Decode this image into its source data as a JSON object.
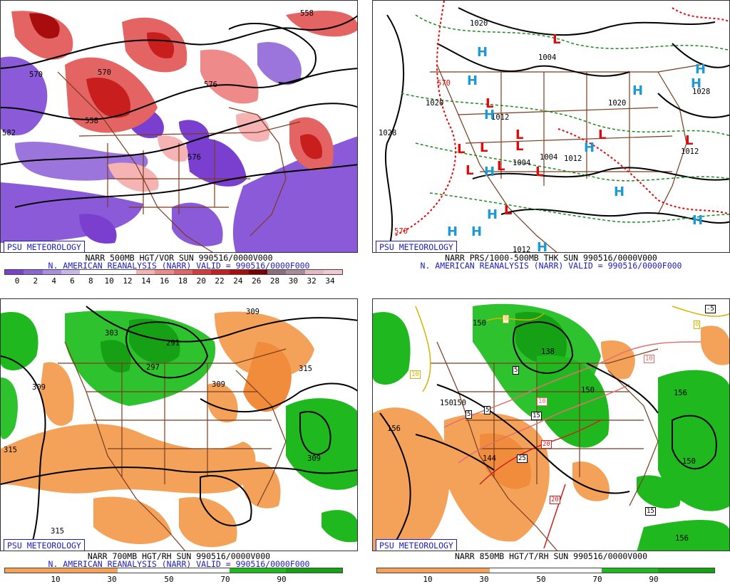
{
  "badge": "PSU METEOROLOGY",
  "panels": {
    "p1": {
      "title": "NARR 500MB HGT/VOR SUN 990516/0000V000",
      "subtitle": "N. AMERICAN REANALYSIS (NARR) VALID = 990516/0000F000",
      "colorbar_labels": [
        "0",
        "2",
        "4",
        "6",
        "8",
        "10",
        "12",
        "14",
        "16",
        "18",
        "20",
        "22",
        "24",
        "26",
        "28",
        "30",
        "32",
        "34"
      ],
      "colorbar_colors": [
        "#7b3fd0",
        "#8f63d8",
        "#aa8ee0",
        "#c9b6ea",
        "#ffffff",
        "#ffffff",
        "#ffffff",
        "#f6b3b3",
        "#ee8a8a",
        "#e46363",
        "#d63a3a",
        "#c81e1e",
        "#a80c0c",
        "#7a0000",
        "#8a6f7f",
        "#a88a9a",
        "#e7b7c4",
        "#f5c6d0"
      ],
      "contour_labels": [
        "570",
        "558",
        "570",
        "582",
        "576",
        "558",
        "576"
      ]
    },
    "p2": {
      "title": "NARR PRS/1000-500MB THK SUN 990516/0000V000",
      "subtitle": "N. AMERICAN REANALYSIS (NARR) VALID = 990516/0000F000",
      "contour_labels": [
        "1020",
        "1004",
        "1028",
        "1020",
        "1020",
        "1012",
        "1028",
        "1004",
        "1012",
        "1012",
        "570",
        "570",
        "1012",
        "1004"
      ],
      "highs": 14,
      "lows": 12
    },
    "p3": {
      "title": "NARR 700MB HGT/RH SUN 990516/0000V000",
      "subtitle": "N. AMERICAN REANALYSIS (NARR) VALID = 990516/0000F000",
      "colorbar_labels": [
        "10",
        "30",
        "50",
        "70",
        "90"
      ],
      "contour_labels": [
        "309",
        "303",
        "291",
        "297",
        "309",
        "315",
        "309",
        "315",
        "309",
        "315"
      ]
    },
    "p4": {
      "title": "NARR 850MB HGT/T/RH SUN 990516/0000V000",
      "colorbar_labels": [
        "10",
        "30",
        "50",
        "70",
        "90"
      ],
      "contour_labels": [
        "150",
        "156",
        "150",
        "138",
        "150",
        "156",
        "150",
        "144",
        "156",
        "150"
      ],
      "temp_labels": [
        "-5",
        "0",
        "0",
        "10",
        "5",
        "5",
        "5",
        "10",
        "15",
        "10",
        "20",
        "25",
        "20",
        "15",
        "10"
      ]
    }
  },
  "colors": {
    "vort_pos": "#d83a3a",
    "vort_neg": "#8a5ad8",
    "rh_dry": "#f4a25a",
    "rh_moist": "#1fb81f",
    "high": "#1b9ad6",
    "low": "#e10a0a",
    "borders": "#7a3c1e"
  }
}
